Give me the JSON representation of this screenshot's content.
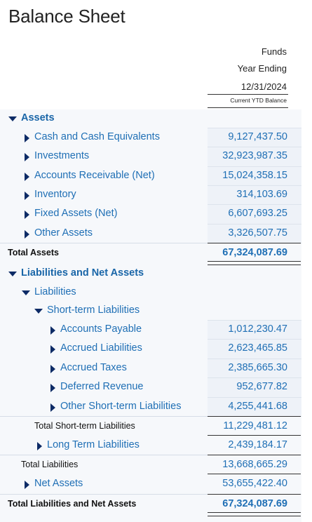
{
  "title": "Balance Sheet",
  "header": {
    "funds": "Funds",
    "year_ending": "Year Ending",
    "date": "12/31/2024",
    "column_label": "Current YTD Balance"
  },
  "rows": [
    {
      "label": "Assets",
      "value": ""
    },
    {
      "label": "Cash and Cash Equivalents",
      "value": "9,127,437.50"
    },
    {
      "label": "Investments",
      "value": "32,923,987.35"
    },
    {
      "label": "Accounts Receivable (Net)",
      "value": "15,024,358.15"
    },
    {
      "label": "Inventory",
      "value": "314,103.69"
    },
    {
      "label": "Fixed Assets (Net)",
      "value": "6,607,693.25"
    },
    {
      "label": "Other Assets",
      "value": "3,326,507.75"
    },
    {
      "label": "Total Assets",
      "value": "67,324,087.69"
    },
    {
      "label": "Liabilities and Net Assets",
      "value": ""
    },
    {
      "label": "Liabilities",
      "value": ""
    },
    {
      "label": "Short-term Liabilities",
      "value": ""
    },
    {
      "label": "Accounts Payable",
      "value": "1,012,230.47"
    },
    {
      "label": "Accrued Liabilities",
      "value": "2,623,465.85"
    },
    {
      "label": "Accrued Taxes",
      "value": "2,385,665.30"
    },
    {
      "label": "Deferred Revenue",
      "value": "952,677.82"
    },
    {
      "label": "Other Short-term Liabilities",
      "value": "4,255,441.68"
    },
    {
      "label": "Total Short-term Liabilities",
      "value": "11,229,481.12"
    },
    {
      "label": "Long Term Liabilities",
      "value": "2,439,184.17"
    },
    {
      "label": "Total Liabilities",
      "value": "13,668,665.29"
    },
    {
      "label": "Net Assets",
      "value": "53,655,422.40"
    },
    {
      "label": "Total Liabilities and Net Assets",
      "value": "67,324,087.69"
    }
  ],
  "colors": {
    "link": "#1f6fb5",
    "triangle": "#0d2b66",
    "band": "#f6f8fb"
  }
}
